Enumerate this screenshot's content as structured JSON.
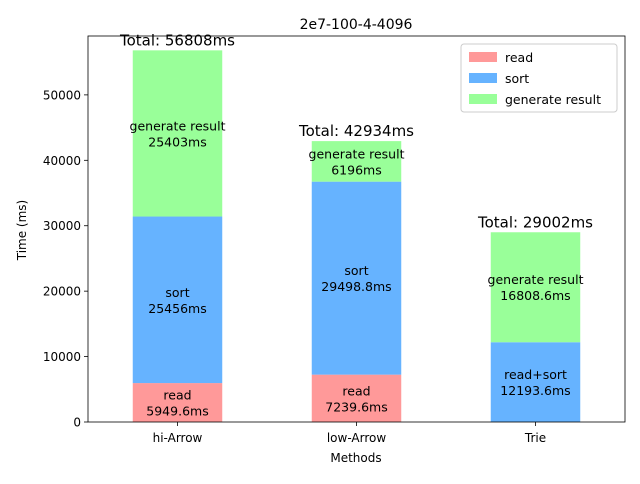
{
  "chart_data": {
    "type": "bar",
    "stacked": true,
    "title": "2e7-100-4-4096",
    "xlabel": "Methods",
    "ylabel": "Time (ms)",
    "ylim": [
      0,
      59000
    ],
    "yticks": [
      0,
      10000,
      20000,
      30000,
      40000,
      50000
    ],
    "categories": [
      "hi-Arrow",
      "low-Arrow",
      "Trie"
    ],
    "legend_position": "top-right",
    "legend": [
      {
        "name": "read",
        "color": "#ff9999"
      },
      {
        "name": "sort",
        "color": "#66b3ff"
      },
      {
        "name": "generate result",
        "color": "#99ff99"
      }
    ],
    "stacks": [
      {
        "category": "hi-Arrow",
        "total_label": "Total: 56808ms",
        "segments": [
          {
            "series": "read",
            "value": 5949.6,
            "color": "#ff9999",
            "label_line1": "read",
            "label_line2": "5949.6ms"
          },
          {
            "series": "sort",
            "value": 25456,
            "color": "#66b3ff",
            "label_line1": "sort",
            "label_line2": "25456ms"
          },
          {
            "series": "generate result",
            "value": 25403,
            "color": "#99ff99",
            "label_line1": "generate result",
            "label_line2": "25403ms"
          }
        ]
      },
      {
        "category": "low-Arrow",
        "total_label": "Total: 42934ms",
        "segments": [
          {
            "series": "read",
            "value": 7239.6,
            "color": "#ff9999",
            "label_line1": "read",
            "label_line2": "7239.6ms"
          },
          {
            "series": "sort",
            "value": 29498.8,
            "color": "#66b3ff",
            "label_line1": "sort",
            "label_line2": "29498.8ms"
          },
          {
            "series": "generate result",
            "value": 6196,
            "color": "#99ff99",
            "label_line1": "generate result",
            "label_line2": "6196ms"
          }
        ]
      },
      {
        "category": "Trie",
        "total_label": "Total: 29002ms",
        "segments": [
          {
            "series": "read+sort",
            "value": 12193.6,
            "color": "#66b3ff",
            "label_line1": "read+sort",
            "label_line2": "12193.6ms"
          },
          {
            "series": "generate result",
            "value": 16808.6,
            "color": "#99ff99",
            "label_line1": "generate result",
            "label_line2": "16808.6ms"
          }
        ]
      }
    ]
  }
}
